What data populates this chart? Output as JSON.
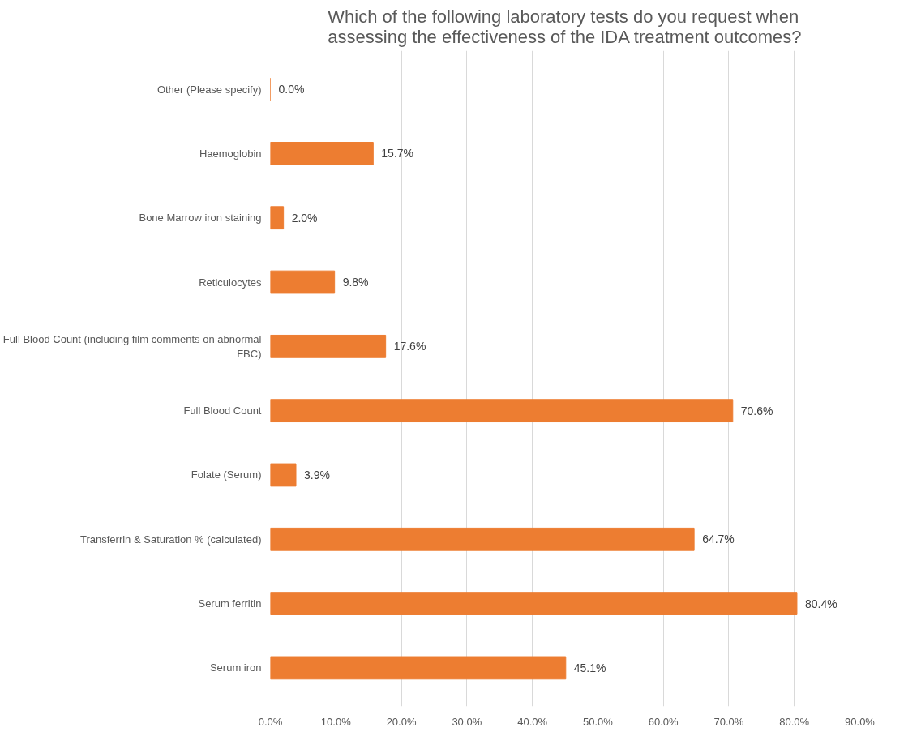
{
  "chart_data": {
    "type": "bar",
    "orientation": "horizontal",
    "title": "Which of the following laboratory tests do you request when assessing the effectiveness of the IDA treatment outcomes?",
    "categories": [
      "Other (Please specify)",
      "Haemoglobin",
      "Bone Marrow iron staining",
      "Reticulocytes",
      "Full Blood Count (including film comments on abnormal FBC)",
      "Full Blood Count",
      "Folate (Serum)",
      "Transferrin & Saturation % (calculated)",
      "Serum ferritin",
      "Serum iron"
    ],
    "values": [
      0.0,
      15.7,
      2.0,
      9.8,
      17.6,
      70.6,
      3.9,
      64.7,
      80.4,
      45.1
    ],
    "value_labels": [
      "0.0%",
      "15.7%",
      "2.0%",
      "9.8%",
      "17.6%",
      "70.6%",
      "3.9%",
      "64.7%",
      "80.4%",
      "45.1%"
    ],
    "color": "#ed7d31",
    "xlim": [
      0,
      90
    ],
    "xticks": [
      {
        "value": 0,
        "label": "0.0%"
      },
      {
        "value": 10,
        "label": "10.0%"
      },
      {
        "value": 20,
        "label": "20.0%"
      },
      {
        "value": 30,
        "label": "30.0%"
      },
      {
        "value": 40,
        "label": "40.0%"
      },
      {
        "value": 50,
        "label": "50.0%"
      },
      {
        "value": 60,
        "label": "60.0%"
      },
      {
        "value": 70,
        "label": "70.0%"
      },
      {
        "value": 80,
        "label": "80.0%"
      },
      {
        "value": 90,
        "label": "90.0%"
      }
    ],
    "grid": "x"
  }
}
